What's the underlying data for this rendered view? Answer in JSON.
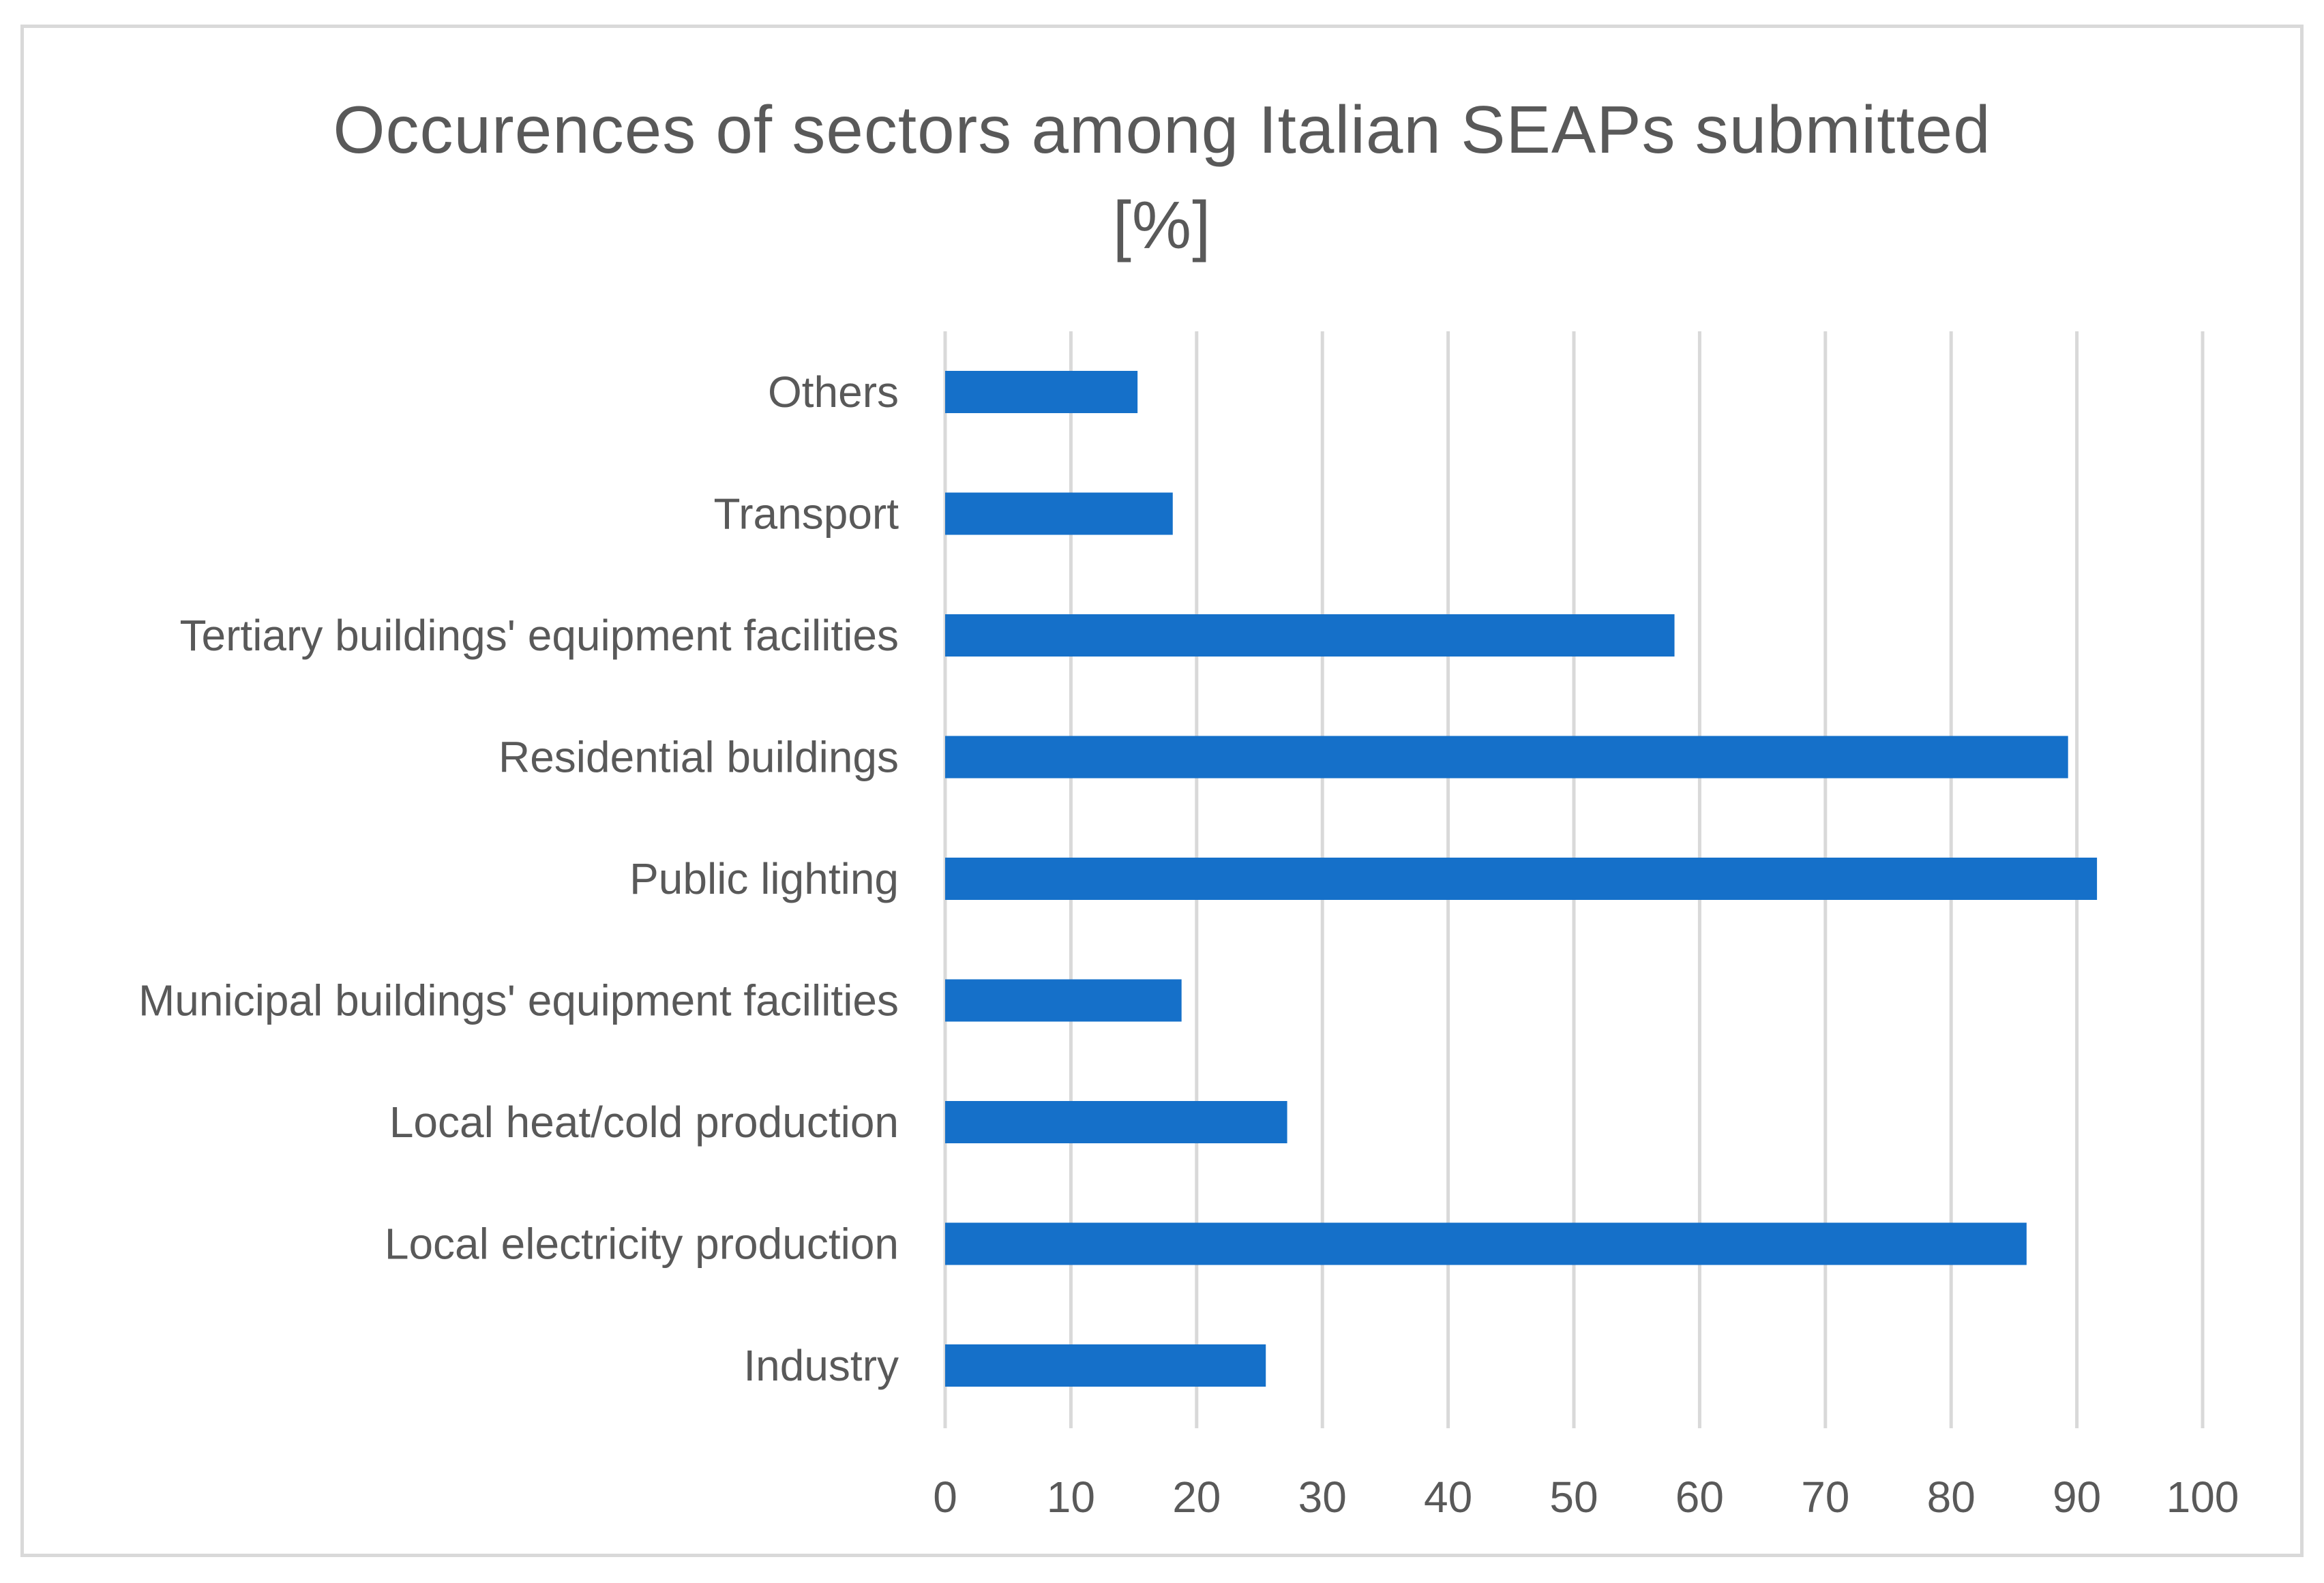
{
  "chart_data": {
    "type": "bar",
    "orientation": "horizontal",
    "title_line1": "Occurences  of sectors among Italian SEAPs submitted",
    "title_line2": "[%]",
    "categories": [
      "Industry",
      "Local electricity production",
      "Local heat/cold production",
      "Municipal buildings' equipment facilities",
      "Public lighting",
      "Residential buildings",
      "Tertiary buildings' equipment facilities",
      "Transport",
      "Others"
    ],
    "values": [
      25.5,
      86,
      27.2,
      18.8,
      91.6,
      89.3,
      58,
      18.1,
      15.3
    ],
    "xlim": [
      0,
      100
    ],
    "xticks": [
      0,
      10,
      20,
      30,
      40,
      50,
      60,
      70,
      80,
      90,
      100
    ],
    "xlabel": "",
    "ylabel": "",
    "grid": true,
    "legend": "none",
    "bar_color": "#1570c9",
    "grid_color": "#d9d9d9"
  }
}
